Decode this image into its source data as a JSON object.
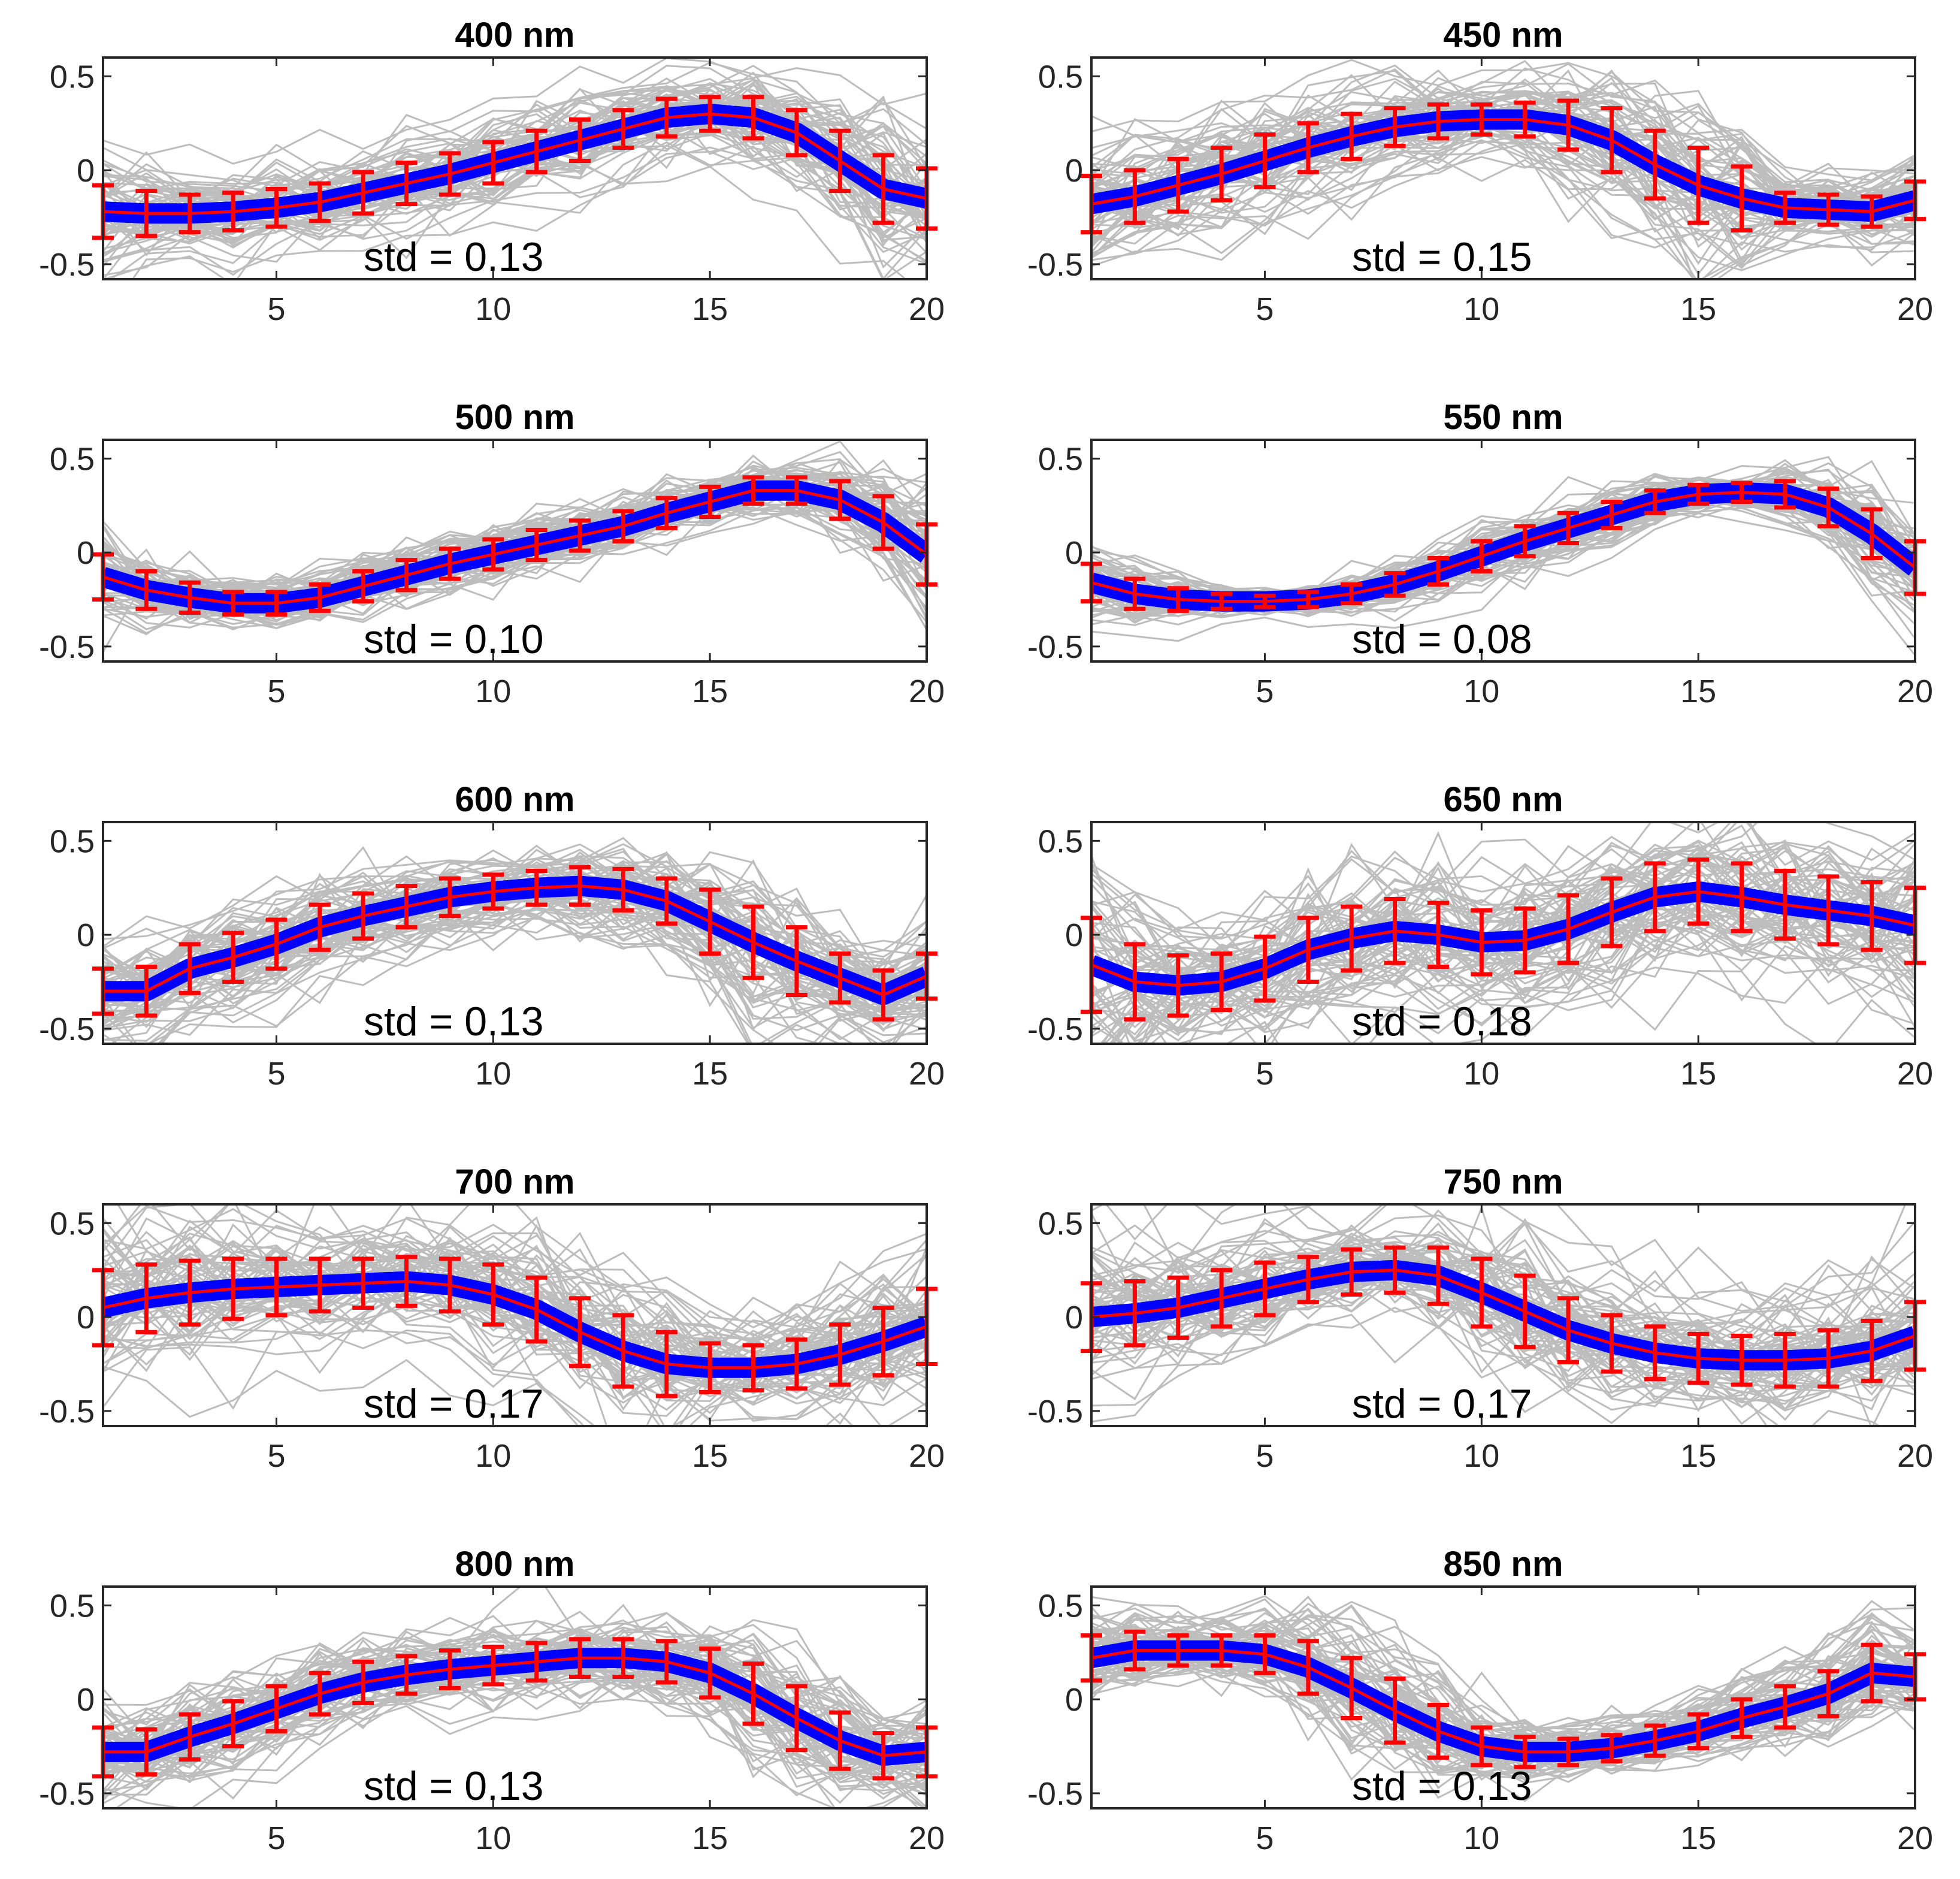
{
  "chart_data": [
    {
      "type": "line",
      "title": "400 nm",
      "std_label": "std = 0.13",
      "xlim": [
        1,
        20
      ],
      "ylim": [
        -0.58,
        0.6
      ],
      "xticks": [
        5,
        10,
        15,
        20
      ],
      "xtick_labels": [
        "5",
        "10",
        "15",
        "20"
      ],
      "yticks": [
        0.5,
        0,
        -0.5
      ],
      "ytick_labels": [
        "0.5",
        "0",
        "-0.5"
      ],
      "x": [
        1,
        2,
        3,
        4,
        5,
        6,
        7,
        8,
        9,
        10,
        11,
        12,
        13,
        14,
        15,
        16,
        17,
        18,
        19,
        20
      ],
      "mean": [
        -0.22,
        -0.23,
        -0.23,
        -0.22,
        -0.2,
        -0.17,
        -0.12,
        -0.07,
        -0.02,
        0.04,
        0.1,
        0.16,
        0.22,
        0.28,
        0.3,
        0.28,
        0.2,
        0.05,
        -0.1,
        -0.15
      ],
      "err": [
        0.14,
        0.12,
        0.1,
        0.1,
        0.1,
        0.1,
        0.11,
        0.11,
        0.11,
        0.11,
        0.11,
        0.11,
        0.1,
        0.1,
        0.09,
        0.11,
        0.12,
        0.16,
        0.18,
        0.16
      ]
    },
    {
      "type": "line",
      "title": "450 nm",
      "std_label": "std = 0.15",
      "xlim": [
        1,
        20
      ],
      "ylim": [
        -0.58,
        0.6
      ],
      "xticks": [
        5,
        10,
        15,
        20
      ],
      "xtick_labels": [
        "5",
        "10",
        "15",
        "20"
      ],
      "yticks": [
        0.5,
        0,
        -0.5
      ],
      "ytick_labels": [
        "0.5",
        "0",
        "-0.5"
      ],
      "x": [
        1,
        2,
        3,
        4,
        5,
        6,
        7,
        8,
        9,
        10,
        11,
        12,
        13,
        14,
        15,
        16,
        17,
        18,
        19,
        20
      ],
      "mean": [
        -0.18,
        -0.14,
        -0.08,
        -0.02,
        0.05,
        0.12,
        0.18,
        0.23,
        0.26,
        0.27,
        0.27,
        0.24,
        0.16,
        0.03,
        -0.08,
        -0.15,
        -0.2,
        -0.21,
        -0.22,
        -0.16
      ],
      "err": [
        0.15,
        0.14,
        0.14,
        0.14,
        0.14,
        0.13,
        0.12,
        0.1,
        0.09,
        0.08,
        0.09,
        0.13,
        0.17,
        0.18,
        0.2,
        0.17,
        0.08,
        0.08,
        0.08,
        0.1
      ]
    },
    {
      "type": "line",
      "title": "500 nm",
      "std_label": "std = 0.10",
      "xlim": [
        1,
        20
      ],
      "ylim": [
        -0.58,
        0.6
      ],
      "xticks": [
        5,
        10,
        15,
        20
      ],
      "xtick_labels": [
        "5",
        "10",
        "15",
        "20"
      ],
      "yticks": [
        0.5,
        0,
        -0.5
      ],
      "ytick_labels": [
        "0.5",
        "0",
        "-0.5"
      ],
      "x": [
        1,
        2,
        3,
        4,
        5,
        6,
        7,
        8,
        9,
        10,
        11,
        12,
        13,
        14,
        15,
        16,
        17,
        18,
        19,
        20
      ],
      "mean": [
        -0.13,
        -0.2,
        -0.24,
        -0.27,
        -0.27,
        -0.24,
        -0.18,
        -0.12,
        -0.06,
        -0.01,
        0.04,
        0.09,
        0.14,
        0.21,
        0.27,
        0.33,
        0.33,
        0.28,
        0.16,
        -0.01
      ],
      "err": [
        0.12,
        0.1,
        0.08,
        0.06,
        0.06,
        0.07,
        0.08,
        0.08,
        0.08,
        0.08,
        0.08,
        0.08,
        0.08,
        0.08,
        0.08,
        0.07,
        0.07,
        0.1,
        0.14,
        0.16
      ]
    },
    {
      "type": "line",
      "title": "550 nm",
      "std_label": "std = 0.08",
      "xlim": [
        1,
        20
      ],
      "ylim": [
        -0.58,
        0.6
      ],
      "xticks": [
        5,
        10,
        15,
        20
      ],
      "xtick_labels": [
        "5",
        "10",
        "15",
        "20"
      ],
      "yticks": [
        0.5,
        0,
        -0.5
      ],
      "ytick_labels": [
        "0.5",
        "0",
        "-0.5"
      ],
      "x": [
        1,
        2,
        3,
        4,
        5,
        6,
        7,
        8,
        9,
        10,
        11,
        12,
        13,
        14,
        15,
        16,
        17,
        18,
        19,
        20
      ],
      "mean": [
        -0.16,
        -0.22,
        -0.25,
        -0.26,
        -0.26,
        -0.25,
        -0.22,
        -0.17,
        -0.1,
        -0.02,
        0.06,
        0.13,
        0.2,
        0.27,
        0.31,
        0.32,
        0.31,
        0.24,
        0.1,
        -0.08
      ],
      "err": [
        0.1,
        0.08,
        0.06,
        0.04,
        0.03,
        0.04,
        0.05,
        0.06,
        0.07,
        0.08,
        0.08,
        0.08,
        0.07,
        0.06,
        0.05,
        0.05,
        0.07,
        0.1,
        0.13,
        0.14
      ]
    },
    {
      "type": "line",
      "title": "600 nm",
      "std_label": "std = 0.13",
      "xlim": [
        1,
        20
      ],
      "ylim": [
        -0.58,
        0.6
      ],
      "xticks": [
        5,
        10,
        15,
        20
      ],
      "xtick_labels": [
        "5",
        "10",
        "15",
        "20"
      ],
      "yticks": [
        0.5,
        0,
        -0.5
      ],
      "ytick_labels": [
        "0.5",
        "0",
        "-0.5"
      ],
      "x": [
        1,
        2,
        3,
        4,
        5,
        6,
        7,
        8,
        9,
        10,
        11,
        12,
        13,
        14,
        15,
        16,
        17,
        18,
        19,
        20
      ],
      "mean": [
        -0.3,
        -0.3,
        -0.18,
        -0.12,
        -0.05,
        0.04,
        0.1,
        0.15,
        0.2,
        0.23,
        0.25,
        0.26,
        0.24,
        0.18,
        0.07,
        -0.04,
        -0.14,
        -0.23,
        -0.32,
        -0.22
      ],
      "err": [
        0.12,
        0.13,
        0.13,
        0.13,
        0.13,
        0.12,
        0.12,
        0.11,
        0.1,
        0.09,
        0.09,
        0.1,
        0.11,
        0.12,
        0.17,
        0.19,
        0.18,
        0.13,
        0.13,
        0.12
      ]
    },
    {
      "type": "line",
      "title": "650 nm",
      "std_label": "std = 0.18",
      "xlim": [
        1,
        20
      ],
      "ylim": [
        -0.58,
        0.6
      ],
      "xticks": [
        5,
        10,
        15,
        20
      ],
      "xtick_labels": [
        "5",
        "10",
        "15",
        "20"
      ],
      "yticks": [
        0.5,
        0,
        -0.5
      ],
      "ytick_labels": [
        "0.5",
        "0",
        "-0.5"
      ],
      "x": [
        1,
        2,
        3,
        4,
        5,
        6,
        7,
        8,
        9,
        10,
        11,
        12,
        13,
        14,
        15,
        16,
        17,
        18,
        19,
        20
      ],
      "mean": [
        -0.16,
        -0.25,
        -0.27,
        -0.25,
        -0.18,
        -0.08,
        -0.02,
        0.02,
        0.0,
        -0.04,
        -0.03,
        0.03,
        0.12,
        0.2,
        0.23,
        0.2,
        0.16,
        0.13,
        0.1,
        0.05
      ],
      "err": [
        0.25,
        0.2,
        0.16,
        0.15,
        0.17,
        0.17,
        0.17,
        0.17,
        0.17,
        0.17,
        0.17,
        0.18,
        0.18,
        0.18,
        0.17,
        0.18,
        0.18,
        0.18,
        0.18,
        0.2
      ]
    },
    {
      "type": "line",
      "title": "700 nm",
      "std_label": "std = 0.17",
      "xlim": [
        1,
        20
      ],
      "ylim": [
        -0.58,
        0.6
      ],
      "xticks": [
        5,
        10,
        15,
        20
      ],
      "xtick_labels": [
        "5",
        "10",
        "15",
        "20"
      ],
      "yticks": [
        0.5,
        0,
        -0.5
      ],
      "ytick_labels": [
        "0.5",
        "0",
        "-0.5"
      ],
      "x": [
        1,
        2,
        3,
        4,
        5,
        6,
        7,
        8,
        9,
        10,
        11,
        12,
        13,
        14,
        15,
        16,
        17,
        18,
        19,
        20
      ],
      "mean": [
        0.05,
        0.1,
        0.13,
        0.15,
        0.16,
        0.17,
        0.18,
        0.19,
        0.17,
        0.12,
        0.04,
        -0.08,
        -0.18,
        -0.25,
        -0.27,
        -0.27,
        -0.25,
        -0.2,
        -0.13,
        -0.05
      ],
      "err": [
        0.2,
        0.18,
        0.17,
        0.16,
        0.15,
        0.14,
        0.13,
        0.13,
        0.14,
        0.16,
        0.17,
        0.18,
        0.19,
        0.17,
        0.13,
        0.12,
        0.13,
        0.16,
        0.18,
        0.2
      ]
    },
    {
      "type": "line",
      "title": "750 nm",
      "std_label": "std = 0.17",
      "xlim": [
        1,
        20
      ],
      "ylim": [
        -0.58,
        0.6
      ],
      "xticks": [
        5,
        10,
        15,
        20
      ],
      "xtick_labels": [
        "5",
        "10",
        "15",
        "20"
      ],
      "yticks": [
        0.5,
        0,
        -0.5
      ],
      "ytick_labels": [
        "0.5",
        "0",
        "-0.5"
      ],
      "x": [
        1,
        2,
        3,
        4,
        5,
        6,
        7,
        8,
        9,
        10,
        11,
        12,
        13,
        14,
        15,
        16,
        17,
        18,
        19,
        20
      ],
      "mean": [
        0.0,
        0.02,
        0.05,
        0.1,
        0.15,
        0.2,
        0.24,
        0.25,
        0.22,
        0.13,
        0.03,
        -0.07,
        -0.14,
        -0.19,
        -0.22,
        -0.23,
        -0.23,
        -0.22,
        -0.18,
        -0.1
      ],
      "err": [
        0.18,
        0.17,
        0.16,
        0.15,
        0.14,
        0.12,
        0.12,
        0.12,
        0.15,
        0.18,
        0.19,
        0.17,
        0.15,
        0.14,
        0.13,
        0.13,
        0.14,
        0.15,
        0.16,
        0.18
      ]
    },
    {
      "type": "line",
      "title": "800 nm",
      "std_label": "std = 0.13",
      "xlim": [
        1,
        20
      ],
      "ylim": [
        -0.58,
        0.6
      ],
      "xticks": [
        5,
        10,
        15,
        20
      ],
      "xtick_labels": [
        "5",
        "10",
        "15",
        "20"
      ],
      "yticks": [
        0.5,
        0,
        -0.5
      ],
      "ytick_labels": [
        "0.5",
        "0",
        "-0.5"
      ],
      "x": [
        1,
        2,
        3,
        4,
        5,
        6,
        7,
        8,
        9,
        10,
        11,
        12,
        13,
        14,
        15,
        16,
        17,
        18,
        19,
        20
      ],
      "mean": [
        -0.28,
        -0.28,
        -0.2,
        -0.13,
        -0.05,
        0.03,
        0.09,
        0.13,
        0.16,
        0.18,
        0.2,
        0.22,
        0.22,
        0.2,
        0.14,
        0.03,
        -0.1,
        -0.22,
        -0.3,
        -0.28
      ],
      "err": [
        0.13,
        0.12,
        0.12,
        0.12,
        0.12,
        0.11,
        0.11,
        0.1,
        0.1,
        0.1,
        0.1,
        0.1,
        0.1,
        0.11,
        0.13,
        0.16,
        0.17,
        0.15,
        0.12,
        0.13
      ]
    },
    {
      "type": "line",
      "title": "850 nm",
      "std_label": "std = 0.13",
      "xlim": [
        1,
        20
      ],
      "ylim": [
        -0.58,
        0.6
      ],
      "xticks": [
        5,
        10,
        15,
        20
      ],
      "xtick_labels": [
        "5",
        "10",
        "15",
        "20"
      ],
      "yticks": [
        0.5,
        0,
        -0.5
      ],
      "ytick_labels": [
        "0.5",
        "0",
        "-0.5"
      ],
      "x": [
        1,
        2,
        3,
        4,
        5,
        6,
        7,
        8,
        9,
        10,
        11,
        12,
        13,
        14,
        15,
        16,
        17,
        18,
        19,
        20
      ],
      "mean": [
        0.22,
        0.26,
        0.26,
        0.26,
        0.24,
        0.17,
        0.06,
        -0.06,
        -0.17,
        -0.25,
        -0.28,
        -0.28,
        -0.26,
        -0.22,
        -0.17,
        -0.1,
        -0.04,
        0.03,
        0.14,
        0.12
      ],
      "err": [
        0.12,
        0.1,
        0.08,
        0.08,
        0.1,
        0.14,
        0.16,
        0.17,
        0.14,
        0.1,
        0.08,
        0.07,
        0.07,
        0.08,
        0.09,
        0.1,
        0.11,
        0.12,
        0.15,
        0.12
      ]
    }
  ],
  "colors": {
    "samples": "#bdbdbd",
    "band": "#0000ff",
    "mean_line": "#ff0000",
    "errorbar": "#ff0000",
    "axes": "#262626"
  }
}
